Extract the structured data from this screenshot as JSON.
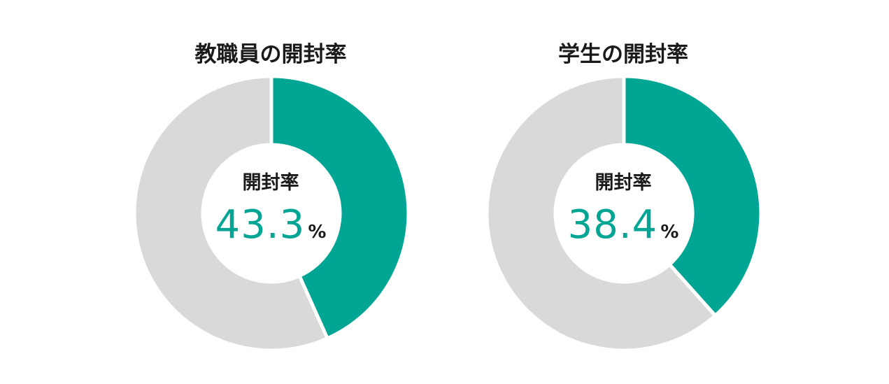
{
  "colors": {
    "open": "#00a693",
    "unopened": "#d9d9d9",
    "separator": "#ffffff"
  },
  "chart_data": [
    {
      "type": "pie",
      "title": "教職員の開封率",
      "center_label": "開封率",
      "center_value": "43.3",
      "unit": "%",
      "slices": [
        {
          "value": 43.3,
          "color": "#00a693"
        },
        {
          "value": 56.7,
          "color": "#d9d9d9"
        }
      ]
    },
    {
      "type": "pie",
      "title": "学生の開封率",
      "center_label": "開封率",
      "center_value": "38.4",
      "unit": "%",
      "slices": [
        {
          "value": 38.4,
          "color": "#00a693"
        },
        {
          "value": 61.6,
          "color": "#d9d9d9"
        }
      ]
    }
  ]
}
